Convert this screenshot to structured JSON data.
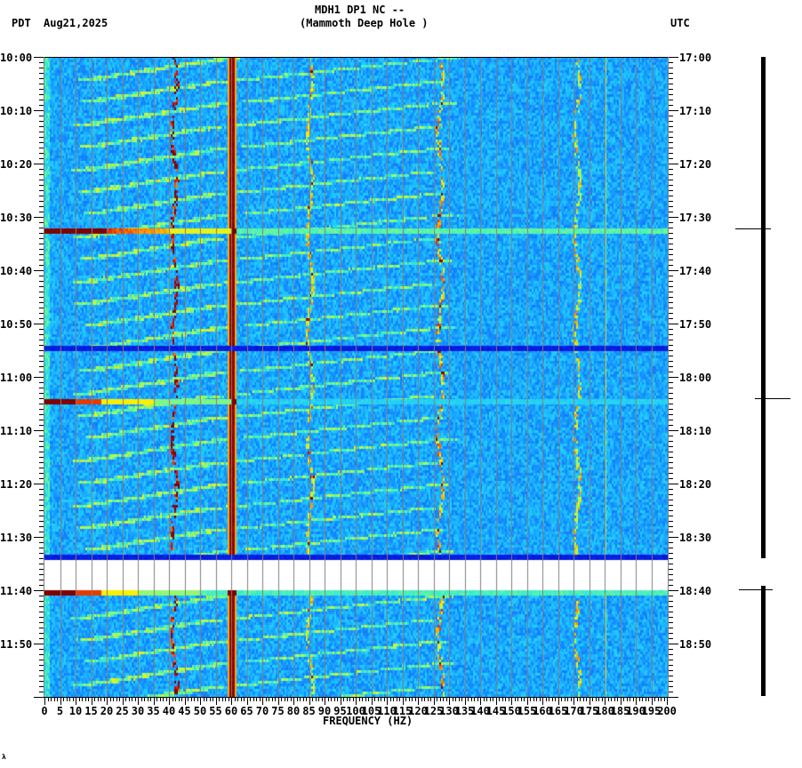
{
  "header": {
    "station_line": "MDH1 DP1 NC --",
    "site_line": "(Mammoth Deep Hole )",
    "left_tz": "PDT",
    "date": "Aug21,2025",
    "right_tz": "UTC"
  },
  "footer": {
    "corner_mark": "λ"
  },
  "colors": {
    "background_low": "#0a2cf0",
    "background_mid": "#1a8cff",
    "noise_high": "#22d0ff",
    "cyan": "#40f0d0",
    "yellow": "#f0f000",
    "orange": "#ff7800",
    "red": "#c00000",
    "darkred": "#800000",
    "gridline": "#808080",
    "gap": "#ffffff"
  },
  "chart_data": {
    "type": "heatmap",
    "title": "MDH1 DP1 NC -- (Mammoth Deep Hole )",
    "xlabel": "FREQUENCY (HZ)",
    "ylabel_left": "PDT",
    "ylabel_right": "UTC",
    "date": "Aug21,2025",
    "xlim": [
      0,
      200
    ],
    "x_ticks": [
      0,
      5,
      10,
      15,
      20,
      25,
      30,
      35,
      40,
      45,
      50,
      55,
      60,
      65,
      70,
      75,
      80,
      85,
      90,
      95,
      100,
      105,
      110,
      115,
      120,
      125,
      130,
      135,
      140,
      145,
      150,
      155,
      160,
      165,
      170,
      175,
      180,
      185,
      190,
      195,
      200
    ],
    "y_range_local": [
      "10:00",
      "12:00"
    ],
    "y_ticks_left": [
      "10:00",
      "10:10",
      "10:20",
      "10:30",
      "10:40",
      "10:50",
      "11:00",
      "11:10",
      "11:20",
      "11:30",
      "11:40",
      "11:50"
    ],
    "y_ticks_right": [
      "17:00",
      "17:10",
      "17:20",
      "17:30",
      "17:40",
      "17:50",
      "18:00",
      "18:10",
      "18:20",
      "18:30",
      "18:40",
      "18:50"
    ],
    "grid": true,
    "persistent_lines_hz": [
      {
        "freq": 60,
        "color": "darkred",
        "note": "strong power-line hum, full duration"
      },
      {
        "freq": 41.5,
        "color": "red/yellow",
        "note": "intermittent wandering line"
      },
      {
        "freq": 85,
        "color": "yellow",
        "note": "intermittent wandering line"
      },
      {
        "freq": 127,
        "color": "yellow",
        "note": "intermittent wandering line"
      },
      {
        "freq": 171,
        "color": "yellow",
        "note": "intermittent wandering line"
      },
      {
        "freq": 180,
        "color": "yellow",
        "note": "faint narrow line"
      }
    ],
    "horizontal_events": [
      {
        "time_local": "10:32",
        "note": "broadband burst, dark red at low freq fading to yellow/cyan"
      },
      {
        "time_local": "10:54",
        "note": "dark blue dropout band across all frequencies"
      },
      {
        "time_local": "11:04",
        "note": "broadband burst, dark red 0-10 Hz fading to yellow by ~45 Hz"
      },
      {
        "time_local": "11:33",
        "note": "dark blue band preceding data gap"
      },
      {
        "time_local_start": "11:34",
        "time_local_end": "11:39",
        "note": "data gap (white)"
      },
      {
        "time_local": "11:40",
        "note": "broadband burst, dark red at low freq fading to cyan"
      }
    ],
    "curved_chirps": "recurring curved cyan/yellow arcs sweeping from ~15 Hz up to ~60 Hz and from ~60 Hz up to ~130 Hz, repeating roughly every 3-5 minutes",
    "side_trace": {
      "description": "black vertical seismogram trace with horizontal calibration markers",
      "markers_utc": [
        "17:32",
        "18:04",
        "18:40"
      ],
      "gap_utc": [
        "18:34",
        "18:39"
      ]
    }
  }
}
